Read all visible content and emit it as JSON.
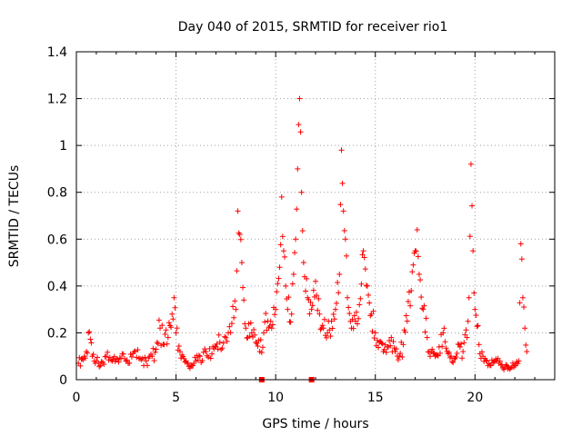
{
  "chart_data": {
    "type": "scatter",
    "title": "Day 040 of 2015, SRMTID for receiver rio1",
    "xlabel": "GPS time / hours",
    "ylabel": "SRMTID / TECUs",
    "xlim": [
      0,
      24
    ],
    "ylim": [
      0,
      1.4
    ],
    "xticks": [
      0,
      5,
      10,
      15,
      20
    ],
    "xtick_labels": [
      "0",
      "5",
      "10",
      "15",
      "20"
    ],
    "yticks": [
      0,
      0.2,
      0.4,
      0.6,
      0.8,
      1,
      1.2,
      1.4
    ],
    "ytick_labels": [
      "0",
      "0.2",
      "0.4",
      "0.6",
      "0.8",
      "1",
      "1.2",
      "1.4"
    ],
    "grid": true,
    "marker": "+",
    "color": "#ff0000",
    "series": [
      {
        "name": "rio1",
        "x": [
          0.1,
          0.3,
          0.5,
          0.6,
          0.8,
          1.0,
          1.2,
          1.5,
          1.8,
          2.0,
          2.3,
          2.6,
          2.9,
          3.2,
          3.5,
          3.8,
          4.0,
          4.2,
          4.4,
          4.6,
          4.8,
          4.9,
          5.0,
          5.2,
          5.4,
          5.6,
          5.8,
          6.0,
          6.2,
          6.5,
          6.8,
          7.0,
          7.2,
          7.5,
          7.8,
          8.0,
          8.1,
          8.2,
          8.3,
          8.4,
          8.5,
          8.6,
          8.8,
          9.0,
          9.2,
          9.4,
          9.6,
          9.8,
          10.0,
          10.2,
          10.3,
          10.4,
          10.5,
          10.6,
          10.8,
          10.9,
          11.0,
          11.1,
          11.2,
          11.3,
          11.4,
          11.6,
          11.8,
          12.0,
          12.2,
          12.4,
          12.6,
          12.8,
          13.0,
          13.2,
          13.3,
          13.4,
          13.5,
          13.6,
          13.8,
          14.0,
          14.2,
          14.4,
          14.6,
          14.8,
          15.0,
          15.2,
          15.4,
          15.6,
          15.8,
          16.0,
          16.2,
          16.4,
          16.6,
          16.8,
          17.0,
          17.1,
          17.2,
          17.4,
          17.6,
          17.8,
          18.0,
          18.2,
          18.4,
          18.6,
          18.8,
          19.0,
          19.2,
          19.4,
          19.6,
          19.7,
          19.8,
          19.9,
          20.0,
          20.2,
          20.4,
          20.6,
          20.8,
          21.0,
          21.2,
          21.4,
          21.6,
          21.8,
          22.0,
          22.2,
          22.3,
          22.4,
          22.5,
          22.6
        ],
        "y": [
          0.07,
          0.09,
          0.12,
          0.2,
          0.1,
          0.08,
          0.06,
          0.1,
          0.08,
          0.09,
          0.11,
          0.07,
          0.12,
          0.09,
          0.08,
          0.1,
          0.13,
          0.22,
          0.15,
          0.18,
          0.28,
          0.35,
          0.2,
          0.12,
          0.09,
          0.07,
          0.06,
          0.08,
          0.1,
          0.12,
          0.11,
          0.14,
          0.16,
          0.18,
          0.24,
          0.3,
          0.72,
          0.62,
          0.5,
          0.34,
          0.22,
          0.18,
          0.2,
          0.16,
          0.12,
          0.2,
          0.25,
          0.22,
          0.3,
          0.48,
          0.78,
          0.55,
          0.4,
          0.3,
          0.28,
          0.45,
          0.6,
          0.9,
          1.2,
          0.8,
          0.5,
          0.35,
          0.3,
          0.42,
          0.28,
          0.22,
          0.2,
          0.25,
          0.3,
          0.45,
          0.98,
          0.72,
          0.6,
          0.35,
          0.22,
          0.25,
          0.32,
          0.55,
          0.4,
          0.28,
          0.2,
          0.16,
          0.12,
          0.14,
          0.18,
          0.12,
          0.1,
          0.15,
          0.25,
          0.38,
          0.55,
          0.64,
          0.45,
          0.3,
          0.18,
          0.12,
          0.1,
          0.14,
          0.2,
          0.12,
          0.1,
          0.09,
          0.15,
          0.12,
          0.18,
          0.35,
          0.92,
          0.55,
          0.3,
          0.15,
          0.1,
          0.08,
          0.06,
          0.08,
          0.07,
          0.05,
          0.06,
          0.05,
          0.06,
          0.08,
          0.58,
          0.35,
          0.22,
          0.12
        ]
      }
    ],
    "outliers_at_zero": [
      9.3,
      11.8
    ]
  }
}
